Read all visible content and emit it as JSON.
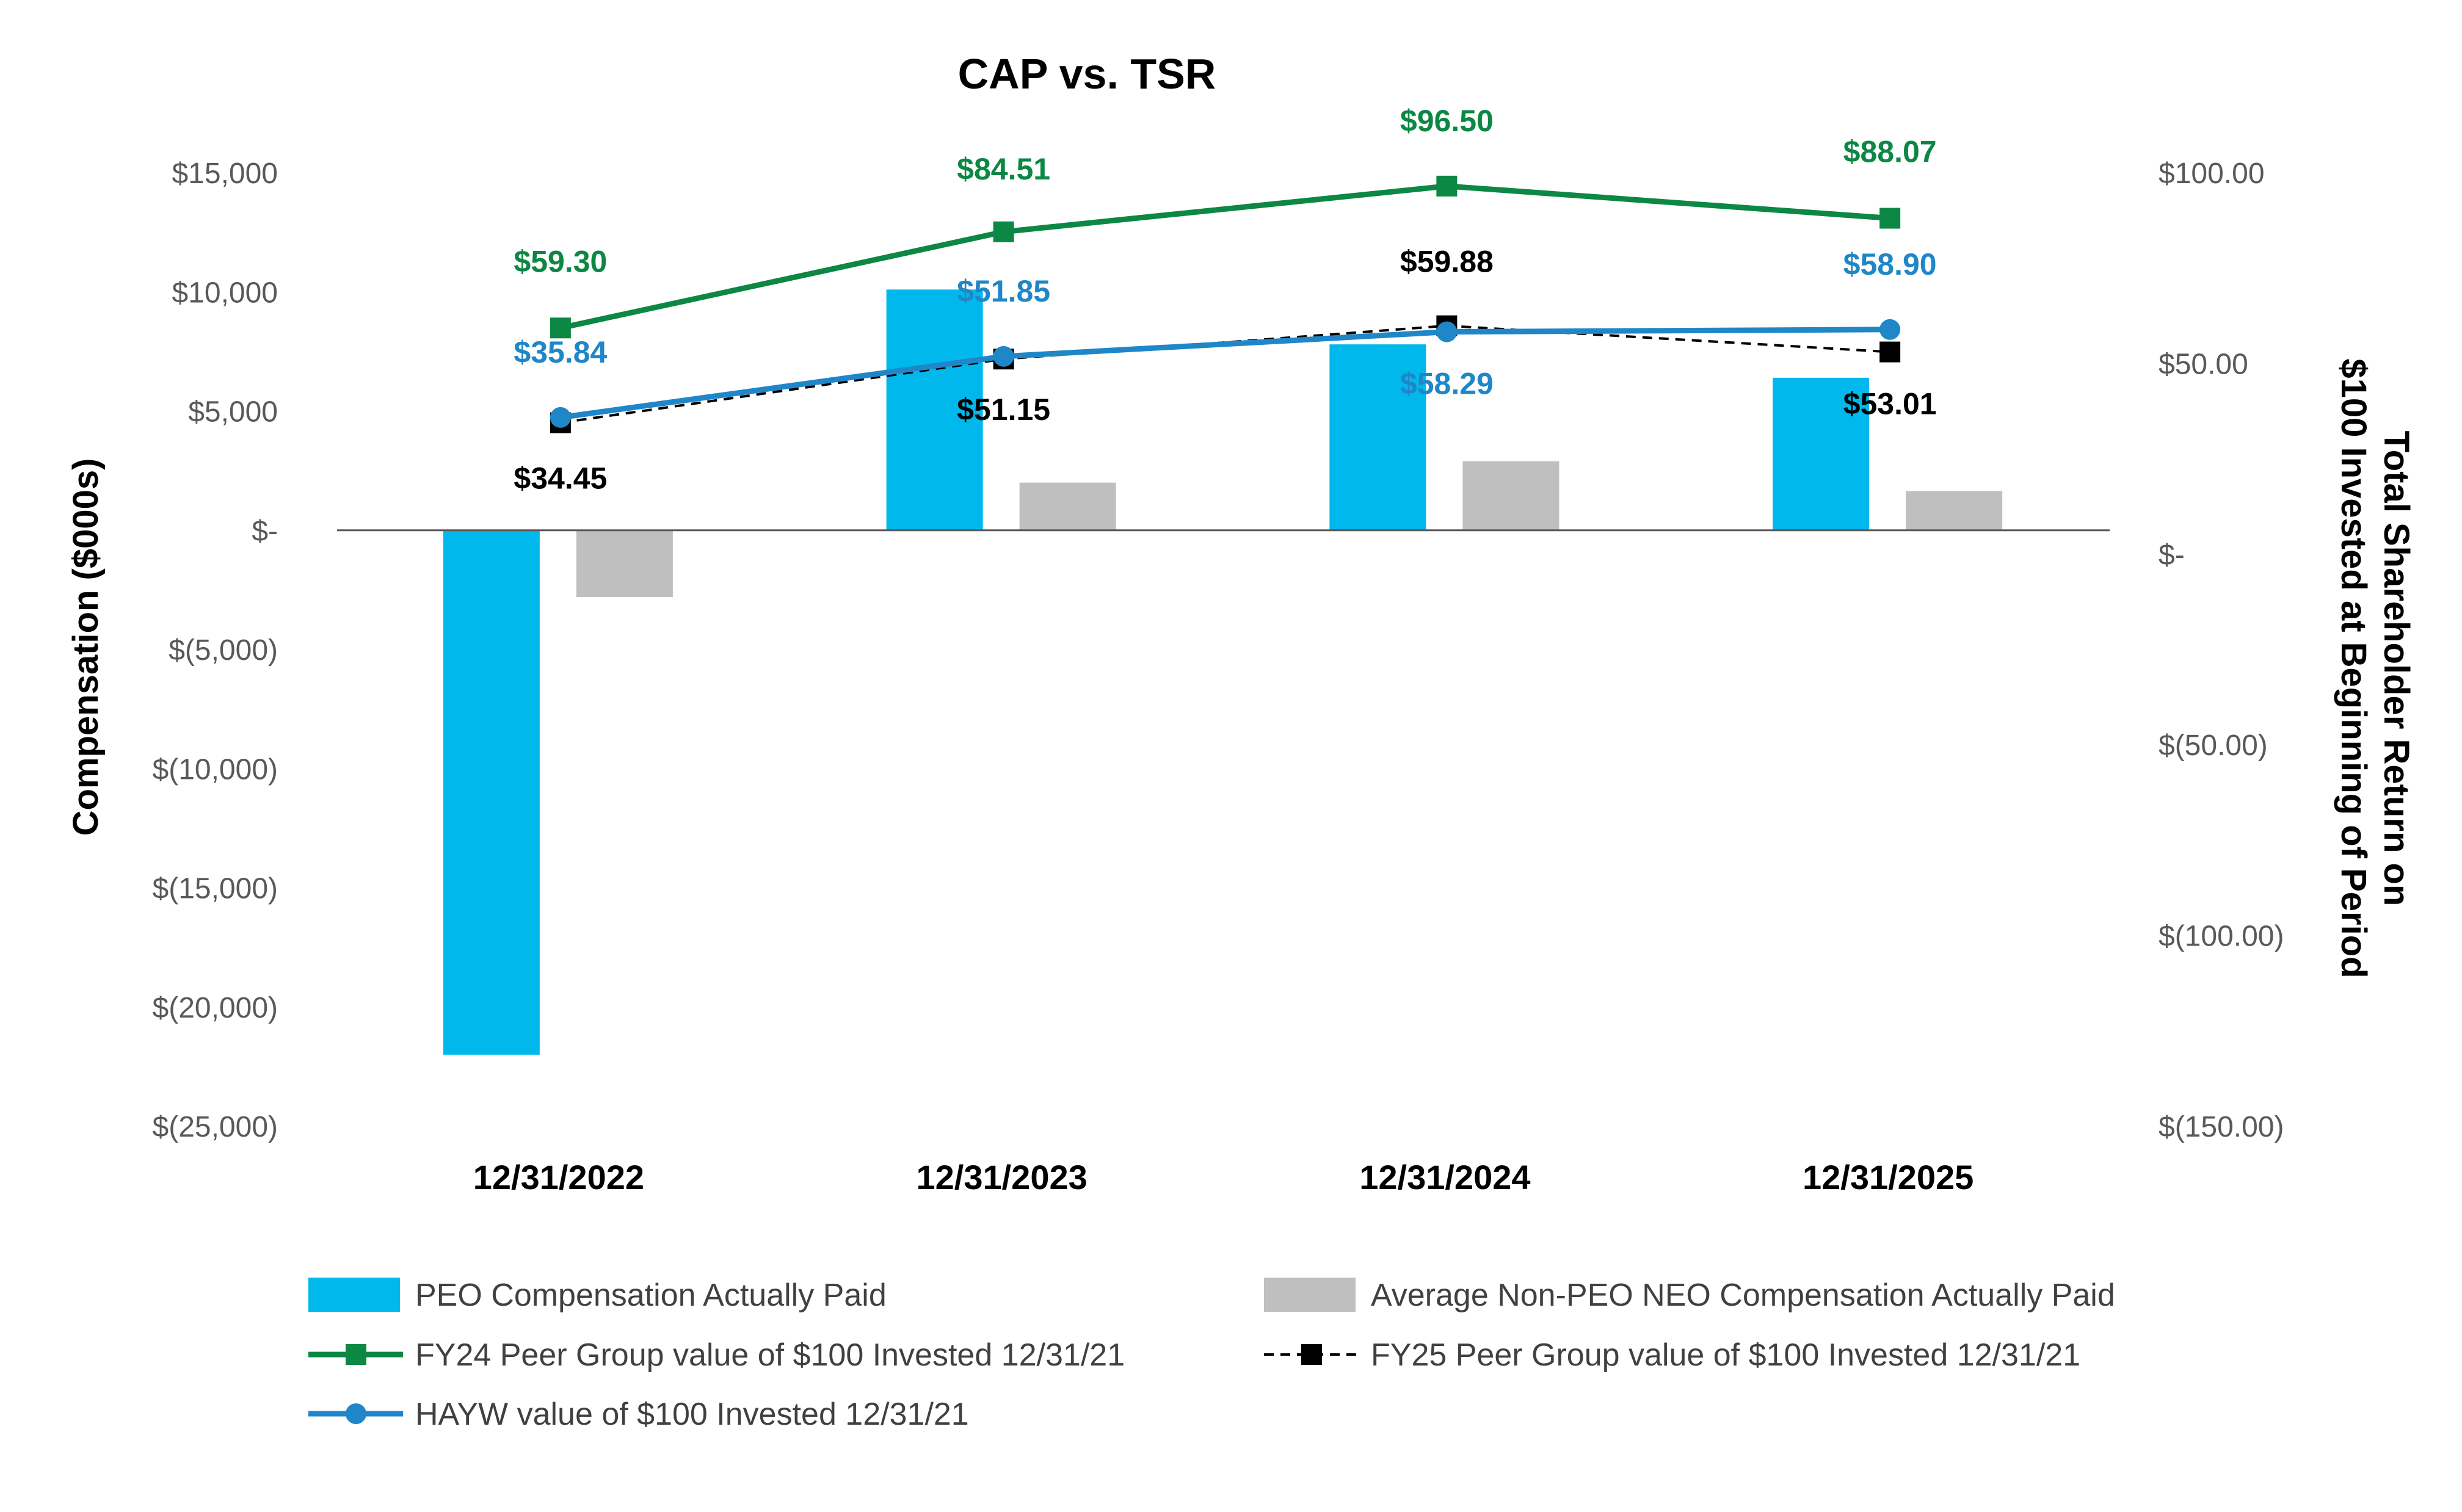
{
  "chart_data": {
    "type": "bar",
    "title": "CAP vs. TSR",
    "ylabel": "Compensation ($000s)",
    "y2label_line1": "Total Shareholder Return on",
    "y2label_line2": "$100 Invested at Beginning of Period",
    "categories": [
      "12/31/2022",
      "12/31/2023",
      "12/31/2024",
      "12/31/2025"
    ],
    "ylim": [
      -25000,
      15000
    ],
    "y2lim": [
      -150,
      100
    ],
    "y_ticks": [
      {
        "value": 15000,
        "label": "$15,000"
      },
      {
        "value": 10000,
        "label": "$10,000"
      },
      {
        "value": 5000,
        "label": "$5,000"
      },
      {
        "value": 0,
        "label": "$-"
      },
      {
        "value": -5000,
        "label": "$(5,000)"
      },
      {
        "value": -10000,
        "label": "$(10,000)"
      },
      {
        "value": -15000,
        "label": "$(15,000)"
      },
      {
        "value": -20000,
        "label": "$(20,000)"
      },
      {
        "value": -25000,
        "label": "$(25,000)"
      }
    ],
    "y2_ticks": [
      {
        "value": 100,
        "label": "$100.00"
      },
      {
        "value": 50,
        "label": "$50.00"
      },
      {
        "value": 0,
        "label": "$-"
      },
      {
        "value": -50,
        "label": "$(50.00)"
      },
      {
        "value": -100,
        "label": "$(100.00)"
      },
      {
        "value": -150,
        "label": "$(150.00)"
      }
    ],
    "bar_series": [
      {
        "name": "PEO Compensation Actually Paid",
        "color": "#00b8ec",
        "values": [
          -22000,
          10100,
          7800,
          6400
        ]
      },
      {
        "name": "Average Non-PEO NEO Compensation Actually Paid",
        "color": "#bfbfbf",
        "values": [
          -2800,
          2000,
          2900,
          1650
        ]
      }
    ],
    "line_series": [
      {
        "name": "FY24 Peer Group value of $100 Invested 12/31/21",
        "color": "#0c8744",
        "style": "solid",
        "marker": "square",
        "values": [
          59.3,
          84.51,
          96.5,
          88.07
        ],
        "labels": [
          "$59.30",
          "$84.51",
          "$96.50",
          "$88.07"
        ]
      },
      {
        "name": "FY25 Peer Group value of $100 Invested 12/31/21",
        "color": "#000000",
        "style": "dashed",
        "marker": "square",
        "values": [
          34.45,
          51.15,
          59.88,
          53.01
        ],
        "labels": [
          "$34.45",
          "$51.15",
          "$59.88",
          "$53.01"
        ]
      },
      {
        "name": "HAYW value of $100 Invested 12/31/21",
        "color": "#1f86c8",
        "style": "solid",
        "marker": "circle",
        "values": [
          35.84,
          51.85,
          58.29,
          58.9
        ],
        "labels": [
          "$35.84",
          "$51.85",
          "$58.29",
          "$58.90"
        ]
      }
    ],
    "legend_position": "bottom",
    "grid": false
  }
}
